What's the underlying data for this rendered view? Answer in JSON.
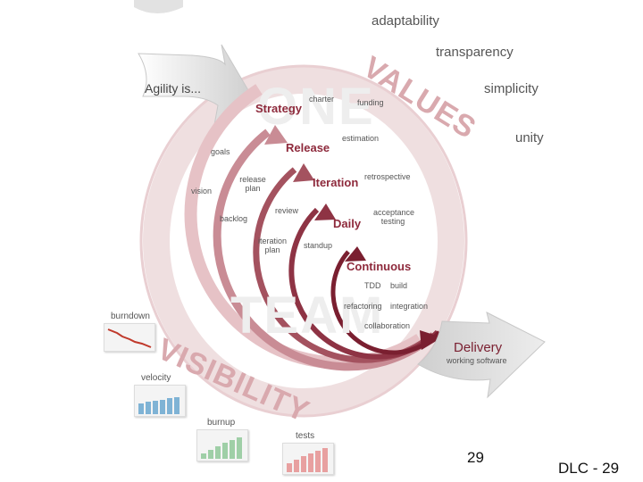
{
  "values": {
    "words": [
      "adaptability",
      "transparency",
      "simplicity",
      "unity"
    ],
    "banner": "VALUES"
  },
  "intro": "Agility is...",
  "ghost_words": [
    "ONE",
    "TEAM"
  ],
  "visibility_banner": "VISIBILITY",
  "levels": {
    "strategy": "Strategy",
    "release": "Release",
    "iteration": "Iteration",
    "daily": "Daily",
    "continuous": "Continuous"
  },
  "activities": {
    "charter": "charter",
    "funding": "funding",
    "goals": "goals",
    "estimation": "estimation",
    "vision": "vision",
    "release_plan": "release plan",
    "retrospective": "retrospective",
    "backlog": "backlog",
    "review": "review",
    "acceptance_testing": "acceptance testing",
    "iteration_plan": "iteration plan",
    "standup": "standup",
    "tdd": "TDD",
    "build": "build",
    "refactoring": "refactoring",
    "integration": "integration",
    "collaboration": "collaboration"
  },
  "delivery": {
    "title": "Delivery",
    "subtitle": "working software"
  },
  "metrics": {
    "burndown": "burndown",
    "velocity": "velocity",
    "burnup": "burnup",
    "tests": "tests"
  },
  "footer": {
    "page_number": "29",
    "slide_id": "DLC - 29"
  },
  "colors": {
    "spiral_dark": "#7a1f30",
    "spiral_light": "#e8c9cc",
    "arrow_gray": "#d6d6d6",
    "banner_pink": "#d9a9ae"
  }
}
